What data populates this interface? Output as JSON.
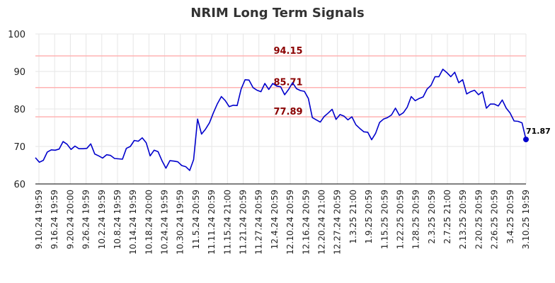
{
  "chart_data": {
    "type": "line",
    "title": "NRIM Long Term Signals",
    "xlabel": "",
    "ylabel": "",
    "ylim": [
      60,
      100
    ],
    "yticks": [
      60,
      70,
      80,
      90,
      100
    ],
    "grid": true,
    "x_tick_labels": [
      "9.10.24 19:59",
      "9.16.24 19:59",
      "9.20.24 20:00",
      "9.26.24 19:59",
      "10.2.24 19:59",
      "10.8.24 19:59",
      "10.14.24 19:59",
      "10.18.24 20:00",
      "10.24.24 19:59",
      "10.30.24 19:59",
      "11.5.24 20:59",
      "11.11.24 20:59",
      "11.15.24 21:00",
      "11.21.24 20:59",
      "11.27.24 20:59",
      "12.4.24 20:59",
      "12.10.24 20:59",
      "12.16.24 20:59",
      "12.20.24 21:00",
      "12.27.24 20:59",
      "1.3.25 21:00",
      "1.9.25 20:59",
      "1.15.25 20:59",
      "1.22.25 20:59",
      "1.28.25 20:59",
      "2.3.25 20:59",
      "2.7.25 21:00",
      "2.13.25 20:59",
      "2.20.25 20:59",
      "2.26.25 20:59",
      "3.4.25 20:59",
      "3.10.25 19:59"
    ],
    "reference_lines": [
      {
        "value": 94.15,
        "label": "94.15",
        "color": "#ffb3b3"
      },
      {
        "value": 85.71,
        "label": "85.71",
        "color": "#ffb3b3"
      },
      {
        "value": 77.89,
        "label": "77.89",
        "color": "#ffb3b3"
      }
    ],
    "series": [
      {
        "color": "#0000cc",
        "values": [
          67.0,
          65.8,
          66.3,
          68.5,
          69.1,
          69.0,
          69.3,
          71.3,
          70.6,
          69.2,
          70.1,
          69.4,
          69.4,
          69.5,
          70.7,
          68.0,
          67.5,
          66.9,
          67.8,
          67.6,
          66.8,
          66.7,
          66.6,
          69.5,
          70.0,
          71.6,
          71.4,
          72.3,
          71.0,
          67.5,
          69.0,
          68.6,
          66.2,
          64.2,
          66.2,
          66.1,
          65.9,
          64.9,
          64.6,
          63.6,
          66.5,
          77.3,
          73.3,
          74.6,
          76.3,
          79.0,
          81.4,
          83.3,
          82.2,
          80.6,
          81.0,
          80.9,
          85.3,
          87.8,
          87.7,
          85.7,
          85.0,
          84.6,
          86.8,
          85.2,
          86.8,
          86.1,
          85.9,
          83.8,
          85.2,
          87.0,
          85.4,
          84.9,
          84.7,
          82.8,
          77.7,
          77.1,
          76.5,
          78.0,
          78.9,
          79.9,
          77.2,
          78.5,
          78.1,
          77.1,
          77.9,
          75.8,
          74.8,
          73.9,
          73.8,
          71.8,
          73.5,
          76.4,
          77.3,
          77.7,
          78.4,
          80.2,
          78.3,
          79.0,
          80.5,
          83.3,
          82.2,
          82.8,
          83.2,
          85.3,
          86.3,
          88.6,
          88.6,
          90.6,
          89.7,
          88.6,
          89.8,
          87.0,
          87.8,
          84.0,
          84.6,
          85.0,
          83.8,
          84.6,
          80.2,
          81.3,
          81.3,
          80.8,
          82.4,
          80.2,
          78.9,
          76.8,
          76.7,
          76.3,
          71.87
        ],
        "last_label": "71.87"
      }
    ]
  }
}
